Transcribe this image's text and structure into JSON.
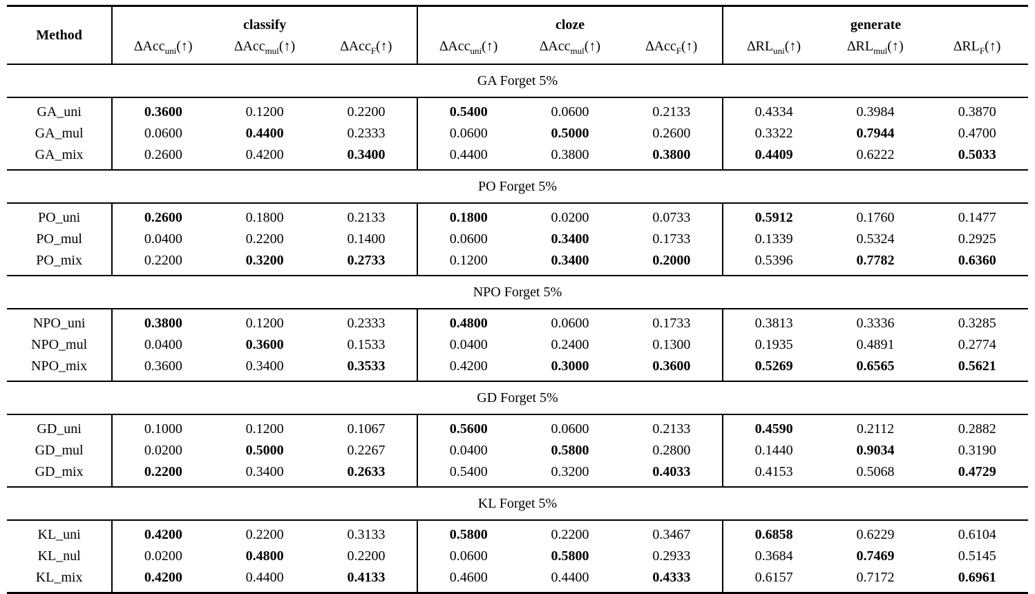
{
  "colors": {
    "text": "#000000",
    "background": "#ffffff",
    "rule": "#000000"
  },
  "table": {
    "method_header": "Method",
    "groups": [
      {
        "label": "classify",
        "columns": [
          {
            "prefix": "∆Acc",
            "sub": "uni",
            "suffix": "(↑)"
          },
          {
            "prefix": "∆Acc",
            "sub": "mul",
            "suffix": "(↑)"
          },
          {
            "prefix": "∆Acc",
            "sub": "F",
            "suffix": "(↑)"
          }
        ]
      },
      {
        "label": "cloze",
        "columns": [
          {
            "prefix": "∆Acc",
            "sub": "uni",
            "suffix": "(↑)"
          },
          {
            "prefix": "∆Acc",
            "sub": "mul",
            "suffix": "(↑)"
          },
          {
            "prefix": "∆Acc",
            "sub": "F",
            "suffix": "(↑)"
          }
        ]
      },
      {
        "label": "generate",
        "columns": [
          {
            "prefix": "∆RL",
            "sub": "uni",
            "suffix": "(↑)"
          },
          {
            "prefix": "∆RL",
            "sub": "mul",
            "suffix": "(↑)"
          },
          {
            "prefix": "∆RL",
            "sub": "F",
            "suffix": "(↑)"
          }
        ]
      }
    ],
    "sections": [
      {
        "title": "GA Forget 5%",
        "rows": [
          {
            "method": "GA_uni",
            "values": [
              "0.3600",
              "0.1200",
              "0.2200",
              "0.5400",
              "0.0600",
              "0.2133",
              "0.4334",
              "0.3984",
              "0.3870"
            ],
            "bold": [
              true,
              false,
              false,
              true,
              false,
              false,
              false,
              false,
              false
            ]
          },
          {
            "method": "GA_mul",
            "values": [
              "0.0600",
              "0.4400",
              "0.2333",
              "0.0600",
              "0.5000",
              "0.2600",
              "0.3322",
              "0.7944",
              "0.4700"
            ],
            "bold": [
              false,
              true,
              false,
              false,
              true,
              false,
              false,
              true,
              false
            ]
          },
          {
            "method": "GA_mix",
            "values": [
              "0.2600",
              "0.4200",
              "0.3400",
              "0.4400",
              "0.3800",
              "0.3800",
              "0.4409",
              "0.6222",
              "0.5033"
            ],
            "bold": [
              false,
              false,
              true,
              false,
              false,
              true,
              true,
              false,
              true
            ]
          }
        ]
      },
      {
        "title": "PO Forget 5%",
        "rows": [
          {
            "method": "PO_uni",
            "values": [
              "0.2600",
              "0.1800",
              "0.2133",
              "0.1800",
              "0.0200",
              "0.0733",
              "0.5912",
              "0.1760",
              "0.1477"
            ],
            "bold": [
              true,
              false,
              false,
              true,
              false,
              false,
              true,
              false,
              false
            ]
          },
          {
            "method": "PO_mul",
            "values": [
              "0.0400",
              "0.2200",
              "0.1400",
              "0.0600",
              "0.3400",
              "0.1733",
              "0.1339",
              "0.5324",
              "0.2925"
            ],
            "bold": [
              false,
              false,
              false,
              false,
              true,
              false,
              false,
              false,
              false
            ]
          },
          {
            "method": "PO_mix",
            "values": [
              "0.2200",
              "0.3200",
              "0.2733",
              "0.1200",
              "0.3400",
              "0.2000",
              "0.5396",
              "0.7782",
              "0.6360"
            ],
            "bold": [
              false,
              true,
              true,
              false,
              true,
              true,
              false,
              true,
              true
            ]
          }
        ]
      },
      {
        "title": "NPO Forget 5%",
        "rows": [
          {
            "method": "NPO_uni",
            "values": [
              "0.3800",
              "0.1200",
              "0.2333",
              "0.4800",
              "0.0600",
              "0.1733",
              "0.3813",
              "0.3336",
              "0.3285"
            ],
            "bold": [
              true,
              false,
              false,
              true,
              false,
              false,
              false,
              false,
              false
            ]
          },
          {
            "method": "NPO_mul",
            "values": [
              "0.0400",
              "0.3600",
              "0.1533",
              "0.0400",
              "0.2400",
              "0.1300",
              "0.1935",
              "0.4891",
              "0.2774"
            ],
            "bold": [
              false,
              true,
              false,
              false,
              false,
              false,
              false,
              false,
              false
            ]
          },
          {
            "method": "NPO_mix",
            "values": [
              "0.3600",
              "0.3400",
              "0.3533",
              "0.4200",
              "0.3000",
              "0.3600",
              "0.5269",
              "0.6565",
              "0.5621"
            ],
            "bold": [
              false,
              false,
              true,
              false,
              true,
              true,
              true,
              true,
              true
            ]
          }
        ]
      },
      {
        "title": "GD Forget 5%",
        "rows": [
          {
            "method": "GD_uni",
            "values": [
              "0.1000",
              "0.1200",
              "0.1067",
              "0.5600",
              "0.0600",
              "0.2133",
              "0.4590",
              "0.2112",
              "0.2882"
            ],
            "bold": [
              false,
              false,
              false,
              true,
              false,
              false,
              true,
              false,
              false
            ]
          },
          {
            "method": "GD_mul",
            "values": [
              "0.0200",
              "0.5000",
              "0.2267",
              "0.0400",
              "0.5800",
              "0.2800",
              "0.1440",
              "0.9034",
              "0.3190"
            ],
            "bold": [
              false,
              true,
              false,
              false,
              true,
              false,
              false,
              true,
              false
            ]
          },
          {
            "method": "GD_mix",
            "values": [
              "0.2200",
              "0.3400",
              "0.2633",
              "0.5400",
              "0.3200",
              "0.4033",
              "0.4153",
              "0.5068",
              "0.4729"
            ],
            "bold": [
              true,
              false,
              true,
              false,
              false,
              true,
              false,
              false,
              true
            ]
          }
        ]
      },
      {
        "title": "KL Forget 5%",
        "rows": [
          {
            "method": "KL_uni",
            "values": [
              "0.4200",
              "0.2200",
              "0.3133",
              "0.5800",
              "0.2200",
              "0.3467",
              "0.6858",
              "0.6229",
              "0.6104"
            ],
            "bold": [
              true,
              false,
              false,
              true,
              false,
              false,
              true,
              false,
              false
            ]
          },
          {
            "method": "KL_nul",
            "values": [
              "0.0200",
              "0.4800",
              "0.2200",
              "0.0600",
              "0.5800",
              "0.2933",
              "0.3684",
              "0.7469",
              "0.5145"
            ],
            "bold": [
              false,
              true,
              false,
              false,
              true,
              false,
              false,
              true,
              false
            ]
          },
          {
            "method": "KL_mix",
            "values": [
              "0.4200",
              "0.4400",
              "0.4133",
              "0.4600",
              "0.4400",
              "0.4333",
              "0.6157",
              "0.7172",
              "0.6961"
            ],
            "bold": [
              true,
              false,
              true,
              false,
              false,
              true,
              false,
              false,
              true
            ]
          }
        ]
      }
    ]
  }
}
